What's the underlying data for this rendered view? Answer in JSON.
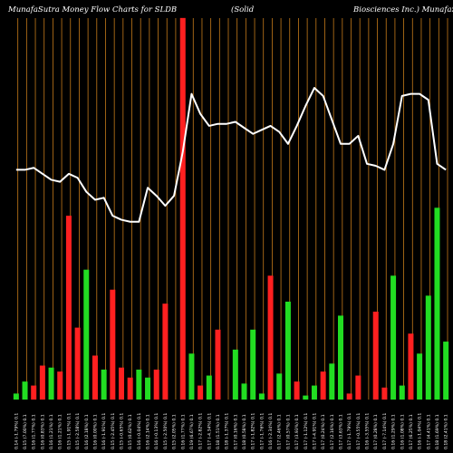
{
  "chart_data": {
    "type": "bar",
    "title_left": "MunafaSutra  Money Flow  Charts for SLDB",
    "title_mid": "(Solid",
    "title_right": "Biosciences Inc.) MunafaSutra.com",
    "colors": {
      "background": "#000000",
      "up": "#22dd22",
      "down": "#ff2020",
      "line": "#ffffff",
      "grid": "#c47a1a"
    },
    "ylim": [
      0,
      100
    ],
    "line_ylim": [
      0,
      100
    ],
    "grid": true,
    "categories": [
      "0.14 (-1.79%) 0.1",
      "0.15 (7.00%) 0.1",
      "0.16 (1.77%) 0.1",
      "0.16 (0.83%) 0.1",
      "0.16 (1.21%) 0.1",
      "0.16 (1.21%) 0.1",
      "0.15 (-1.91%) 0.1",
      "0.15 (-2.58%) 0.1",
      "0.16 (2.18%) 0.1",
      "0.16 (0.00%) 0.1",
      "0.16 (-1.91%) 0.1",
      "0.15 (-2.45%) 0.1",
      "0.15 (-0.65%) 0.1",
      "0.15 (0.62%) 0.1",
      "0.16 (-0.04%) 0.1",
      "0.16 (2.14%) 0.1",
      "0.16 (-0.13%) 0.1",
      "0.15 (-2.50%) 0.1",
      "0.15 (2.05%) 0.1",
      "0.16 (1.77%) 0.1",
      "0.19 (6.67%) 0.1",
      "0.17 (-2.82%) 0.1",
      "0.17 (-4.34%) 0.1",
      "0.18 (1.51%) 0.1",
      "0.18 (-1.37%) 0.1",
      "0.17 (0.16%) 0.1",
      "0.18 (0.58%) 0.1",
      "0.17 (-1.82%) 0.1",
      "0.17 (-1.76%) 0.1",
      "0.16 (-2.34%) 0.1",
      "0.17 (2.46%) 0.1",
      "0.17 (0.57%) 0.1",
      "0.17 (3.93%) 0.1",
      "0.17 (-1.12%) 0.1",
      "0.17 (-4.91%) 0.1",
      "0.17 (0.24%) 0.1",
      "0.17 (2.16%) 0.1",
      "0.17 (3.63%) 0.1",
      "0.17 (-1.79%) 0.1",
      "0.17 (-0.55%) 0.1",
      "0.16 (-3.55%) 0.1",
      "0.17 (0.28%) 0.1",
      "0.17 (-7.14%) 0.1",
      "0.16 (1.29%) 0.1",
      "0.16 (1.08%) 0.1",
      "0.17 (6.25%) 0.1",
      "0.16 (-1.04%) 0.1",
      "0.17 (4.41%) 0.1",
      "0.18 (1.69%) 0.1",
      "0.18 (2.41%) 0.1"
    ],
    "series": [
      {
        "type": "bar",
        "colors": [
          "up",
          "up",
          "down",
          "down",
          "up",
          "down",
          "down",
          "down",
          "up",
          "down",
          "up",
          "down",
          "down",
          "down",
          "up",
          "up",
          "down",
          "down",
          "up",
          "down",
          "up",
          "down",
          "up",
          "down",
          "down",
          "up",
          "up",
          "up",
          "up",
          "down",
          "up",
          "up",
          "down",
          "up",
          "up",
          "down",
          "up",
          "up",
          "down",
          "down",
          "up",
          "down",
          "down",
          "up",
          "up",
          "down",
          "up",
          "up",
          "up",
          "up"
        ],
        "values": [
          1.5,
          4.5,
          3.5,
          8.5,
          8,
          7,
          46,
          18,
          32.5,
          11,
          7.5,
          27.5,
          8,
          5.5,
          7.5,
          5.5,
          7.5,
          24,
          0,
          95.5,
          11.5,
          3.5,
          6,
          17.5,
          0,
          12.5,
          4,
          17.5,
          1.5,
          31,
          6.5,
          24.5,
          4.5,
          1,
          3.5,
          7,
          9,
          21,
          1.5,
          6,
          0,
          22,
          3,
          31,
          3.5,
          16.5,
          11.5,
          26,
          48,
          14.5
        ]
      },
      {
        "type": "line",
        "values": [
          57.5,
          57.5,
          58,
          56.5,
          55,
          54.5,
          56.5,
          55.5,
          52,
          50,
          50.5,
          46,
          45,
          44.5,
          44.5,
          53,
          51,
          48.5,
          51,
          62,
          76.5,
          71.5,
          68.5,
          69,
          69,
          69.5,
          68,
          66.5,
          67.5,
          68.5,
          67,
          64,
          68.5,
          73.5,
          78,
          76,
          70,
          64,
          64,
          66,
          59,
          58.5,
          57.5,
          64,
          76,
          76.5,
          76.5,
          75,
          59,
          57.5
        ]
      }
    ]
  }
}
